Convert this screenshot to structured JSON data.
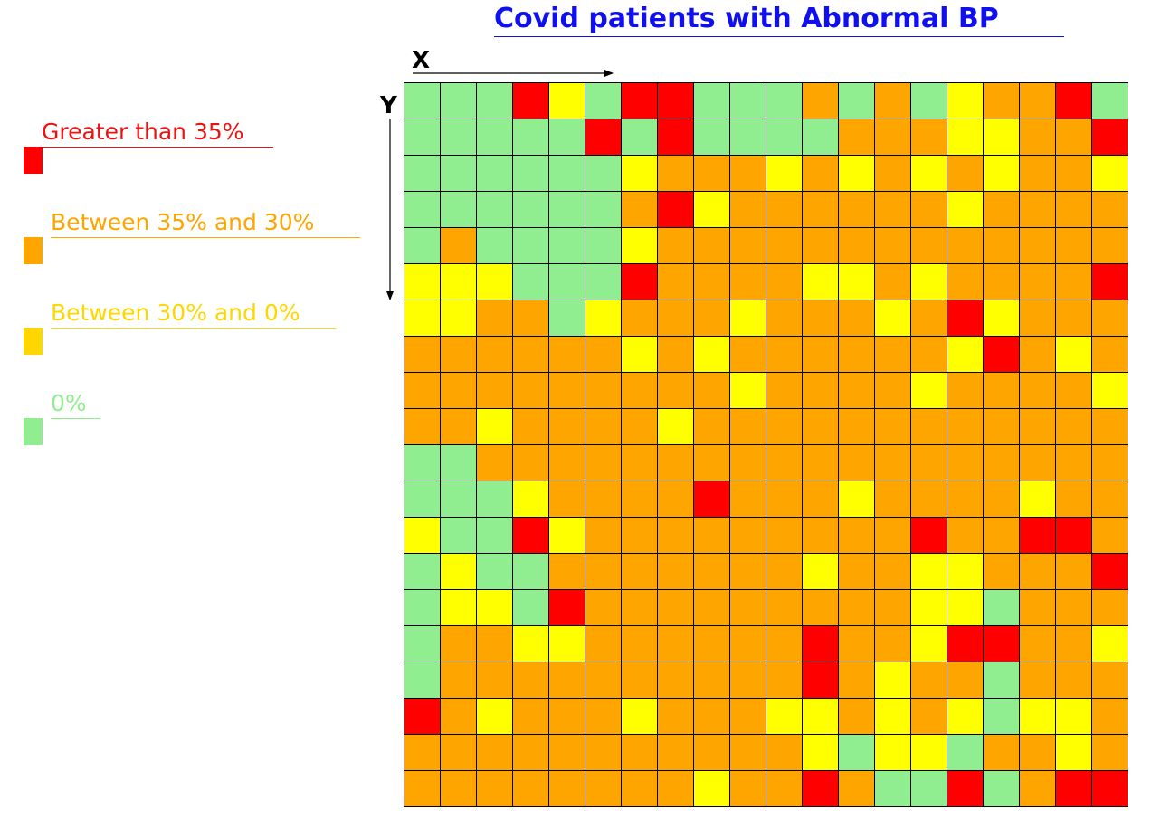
{
  "title": "Covid patients with Abnormal BP",
  "x_axis_label": "X",
  "y_axis_label": "Y",
  "legend": [
    {
      "key": "R",
      "label": "Greater than 35%",
      "label_color": "#ee1111",
      "swatch_color": "#ff0000"
    },
    {
      "key": "O",
      "label": "Between 35% and 30%",
      "label_color": "#ffa500",
      "swatch_color": "#ffa500"
    },
    {
      "key": "Y",
      "label": "Between 30% and 0%",
      "label_color": "#ffd700",
      "swatch_color": "#ffd700"
    },
    {
      "key": "G",
      "label": "0%",
      "label_color": "#90ee90",
      "swatch_color": "#90ee90"
    }
  ],
  "cell_colors": {
    "R": "#ff0000",
    "O": "#ffa500",
    "Y": "#ffff00",
    "G": "#90ee90"
  },
  "chart_data": {
    "type": "heatmap",
    "title": "Covid patients with Abnormal BP",
    "xlabel": "X",
    "ylabel": "Y",
    "categories_legend": {
      "R": "Greater than 35%",
      "O": "Between 35% and 30%",
      "Y": "Between 30% and 0%",
      "G": "0%"
    },
    "rows": 20,
    "cols": 20,
    "grid": [
      "GGGRYGRRGGGOGOGYOORG",
      "GGGGGRGRGGGGOOOYYOOR",
      "GGGGGGYOOOYOYOYOYOOY",
      "GGGGGGORYOOOOOOYOOOO",
      "GOGGGGYOOOOOOOOOOOOO",
      "YYYGGGROOOOYYOYOOOOR",
      "YYOOGYOOOYOOOYORYOOO",
      "OOOOOOYOYOOOOOOYROYO",
      "OOOOOOOOOYOOOOYOOOOY",
      "OOYOOOOYOOOOOOOOOOOO",
      "GGOOOOOOOOOOOOOOOOOO",
      "GGGYOOOOROOOYOOOOYOO",
      "YGGRYOOOOOOOOOROORRO",
      "GYGGOOOOOOOYOOYYOOOR",
      "GYYGROOOOOOOOOYYGOOO",
      "GOOYYOOOOOOROOYRROOY",
      "GOOOOOOOOOOROYOOGOOO",
      "ROYOOOYOOOYYOYOYGYYO",
      "OOOOOOOOOOOYGYYGOOYO",
      "OOOOOOOOYOOROGGRGORR"
    ]
  }
}
